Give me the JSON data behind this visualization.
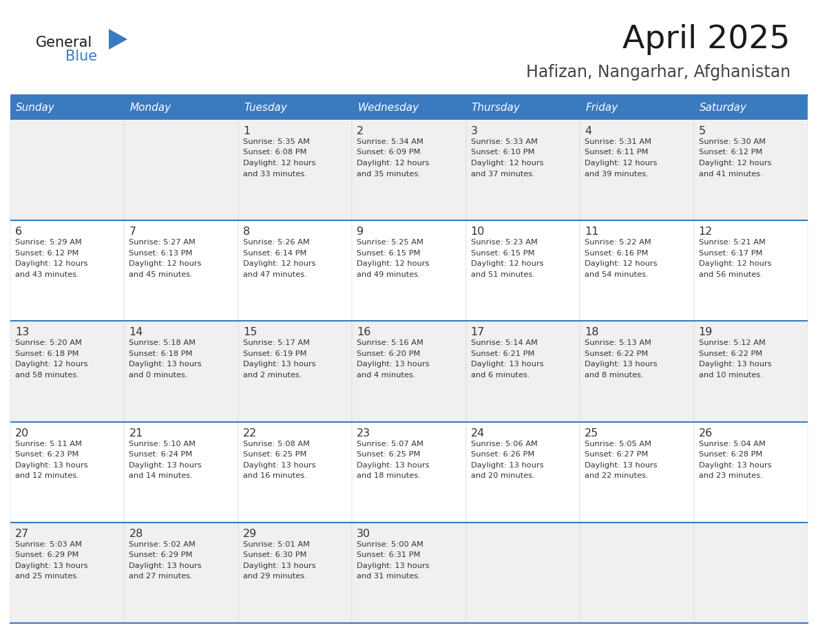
{
  "title": "April 2025",
  "subtitle": "Hafizan, Nangarhar, Afghanistan",
  "days_of_week": [
    "Sunday",
    "Monday",
    "Tuesday",
    "Wednesday",
    "Thursday",
    "Friday",
    "Saturday"
  ],
  "header_bg": "#3a7abf",
  "header_text": "#ffffff",
  "row_bg_odd": "#f0f0f0",
  "row_bg_even": "#ffffff",
  "cell_text_color": "#333333",
  "day_num_color": "#333333",
  "border_color": "#3a7abf",
  "title_color": "#1a1a1a",
  "subtitle_color": "#444444",
  "logo_dark_color": "#1a1a1a",
  "logo_blue_color": "#3a7abf",
  "calendar_data": [
    [
      {
        "day": "",
        "lines": []
      },
      {
        "day": "",
        "lines": []
      },
      {
        "day": "1",
        "lines": [
          "Sunrise: 5:35 AM",
          "Sunset: 6:08 PM",
          "Daylight: 12 hours",
          "and 33 minutes."
        ]
      },
      {
        "day": "2",
        "lines": [
          "Sunrise: 5:34 AM",
          "Sunset: 6:09 PM",
          "Daylight: 12 hours",
          "and 35 minutes."
        ]
      },
      {
        "day": "3",
        "lines": [
          "Sunrise: 5:33 AM",
          "Sunset: 6:10 PM",
          "Daylight: 12 hours",
          "and 37 minutes."
        ]
      },
      {
        "day": "4",
        "lines": [
          "Sunrise: 5:31 AM",
          "Sunset: 6:11 PM",
          "Daylight: 12 hours",
          "and 39 minutes."
        ]
      },
      {
        "day": "5",
        "lines": [
          "Sunrise: 5:30 AM",
          "Sunset: 6:12 PM",
          "Daylight: 12 hours",
          "and 41 minutes."
        ]
      }
    ],
    [
      {
        "day": "6",
        "lines": [
          "Sunrise: 5:29 AM",
          "Sunset: 6:12 PM",
          "Daylight: 12 hours",
          "and 43 minutes."
        ]
      },
      {
        "day": "7",
        "lines": [
          "Sunrise: 5:27 AM",
          "Sunset: 6:13 PM",
          "Daylight: 12 hours",
          "and 45 minutes."
        ]
      },
      {
        "day": "8",
        "lines": [
          "Sunrise: 5:26 AM",
          "Sunset: 6:14 PM",
          "Daylight: 12 hours",
          "and 47 minutes."
        ]
      },
      {
        "day": "9",
        "lines": [
          "Sunrise: 5:25 AM",
          "Sunset: 6:15 PM",
          "Daylight: 12 hours",
          "and 49 minutes."
        ]
      },
      {
        "day": "10",
        "lines": [
          "Sunrise: 5:23 AM",
          "Sunset: 6:15 PM",
          "Daylight: 12 hours",
          "and 51 minutes."
        ]
      },
      {
        "day": "11",
        "lines": [
          "Sunrise: 5:22 AM",
          "Sunset: 6:16 PM",
          "Daylight: 12 hours",
          "and 54 minutes."
        ]
      },
      {
        "day": "12",
        "lines": [
          "Sunrise: 5:21 AM",
          "Sunset: 6:17 PM",
          "Daylight: 12 hours",
          "and 56 minutes."
        ]
      }
    ],
    [
      {
        "day": "13",
        "lines": [
          "Sunrise: 5:20 AM",
          "Sunset: 6:18 PM",
          "Daylight: 12 hours",
          "and 58 minutes."
        ]
      },
      {
        "day": "14",
        "lines": [
          "Sunrise: 5:18 AM",
          "Sunset: 6:18 PM",
          "Daylight: 13 hours",
          "and 0 minutes."
        ]
      },
      {
        "day": "15",
        "lines": [
          "Sunrise: 5:17 AM",
          "Sunset: 6:19 PM",
          "Daylight: 13 hours",
          "and 2 minutes."
        ]
      },
      {
        "day": "16",
        "lines": [
          "Sunrise: 5:16 AM",
          "Sunset: 6:20 PM",
          "Daylight: 13 hours",
          "and 4 minutes."
        ]
      },
      {
        "day": "17",
        "lines": [
          "Sunrise: 5:14 AM",
          "Sunset: 6:21 PM",
          "Daylight: 13 hours",
          "and 6 minutes."
        ]
      },
      {
        "day": "18",
        "lines": [
          "Sunrise: 5:13 AM",
          "Sunset: 6:22 PM",
          "Daylight: 13 hours",
          "and 8 minutes."
        ]
      },
      {
        "day": "19",
        "lines": [
          "Sunrise: 5:12 AM",
          "Sunset: 6:22 PM",
          "Daylight: 13 hours",
          "and 10 minutes."
        ]
      }
    ],
    [
      {
        "day": "20",
        "lines": [
          "Sunrise: 5:11 AM",
          "Sunset: 6:23 PM",
          "Daylight: 13 hours",
          "and 12 minutes."
        ]
      },
      {
        "day": "21",
        "lines": [
          "Sunrise: 5:10 AM",
          "Sunset: 6:24 PM",
          "Daylight: 13 hours",
          "and 14 minutes."
        ]
      },
      {
        "day": "22",
        "lines": [
          "Sunrise: 5:08 AM",
          "Sunset: 6:25 PM",
          "Daylight: 13 hours",
          "and 16 minutes."
        ]
      },
      {
        "day": "23",
        "lines": [
          "Sunrise: 5:07 AM",
          "Sunset: 6:25 PM",
          "Daylight: 13 hours",
          "and 18 minutes."
        ]
      },
      {
        "day": "24",
        "lines": [
          "Sunrise: 5:06 AM",
          "Sunset: 6:26 PM",
          "Daylight: 13 hours",
          "and 20 minutes."
        ]
      },
      {
        "day": "25",
        "lines": [
          "Sunrise: 5:05 AM",
          "Sunset: 6:27 PM",
          "Daylight: 13 hours",
          "and 22 minutes."
        ]
      },
      {
        "day": "26",
        "lines": [
          "Sunrise: 5:04 AM",
          "Sunset: 6:28 PM",
          "Daylight: 13 hours",
          "and 23 minutes."
        ]
      }
    ],
    [
      {
        "day": "27",
        "lines": [
          "Sunrise: 5:03 AM",
          "Sunset: 6:29 PM",
          "Daylight: 13 hours",
          "and 25 minutes."
        ]
      },
      {
        "day": "28",
        "lines": [
          "Sunrise: 5:02 AM",
          "Sunset: 6:29 PM",
          "Daylight: 13 hours",
          "and 27 minutes."
        ]
      },
      {
        "day": "29",
        "lines": [
          "Sunrise: 5:01 AM",
          "Sunset: 6:30 PM",
          "Daylight: 13 hours",
          "and 29 minutes."
        ]
      },
      {
        "day": "30",
        "lines": [
          "Sunrise: 5:00 AM",
          "Sunset: 6:31 PM",
          "Daylight: 13 hours",
          "and 31 minutes."
        ]
      },
      {
        "day": "",
        "lines": []
      },
      {
        "day": "",
        "lines": []
      },
      {
        "day": "",
        "lines": []
      }
    ]
  ]
}
